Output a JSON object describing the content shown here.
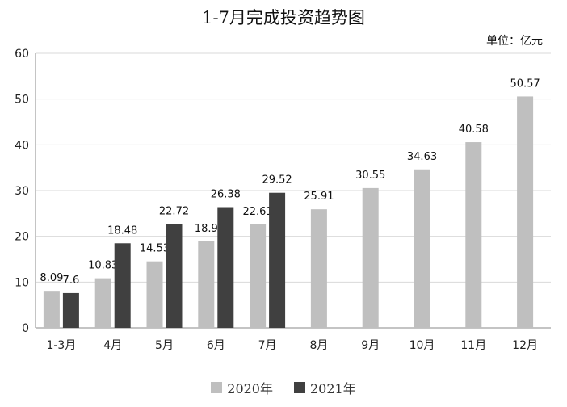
{
  "chart_data": {
    "type": "bar",
    "title": "1-7月完成投资趋势图",
    "unit_label": "单位：亿元",
    "xlabel": "",
    "ylabel": "",
    "ylim": [
      0,
      60
    ],
    "yticks": [
      0,
      10,
      20,
      30,
      40,
      50,
      60
    ],
    "categories": [
      "1-3月",
      "4月",
      "5月",
      "6月",
      "7月",
      "8月",
      "9月",
      "10月",
      "11月",
      "12月"
    ],
    "series": [
      {
        "name": "2020年",
        "color": "#bfbfbf",
        "values": [
          8.09,
          10.83,
          14.53,
          18.9,
          22.61,
          25.91,
          30.55,
          34.63,
          40.58,
          50.57
        ]
      },
      {
        "name": "2021年",
        "color": "#404040",
        "values": [
          7.6,
          18.48,
          22.72,
          26.38,
          29.52,
          null,
          null,
          null,
          null,
          null
        ]
      }
    ],
    "grid": true,
    "legend_position": "bottom"
  }
}
